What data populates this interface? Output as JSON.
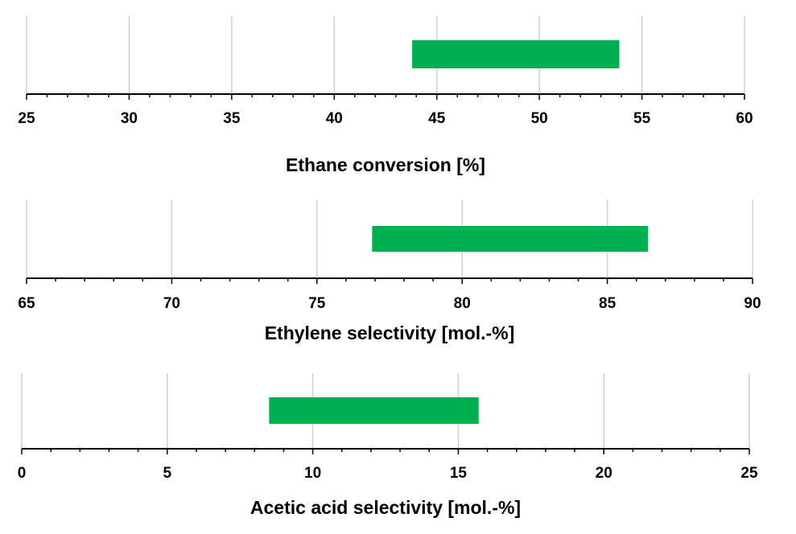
{
  "colors": {
    "bar": "#00b050",
    "grid": "#d0d0d0",
    "axis": "#000000"
  },
  "chart_data": [
    {
      "type": "bar",
      "orientation": "horizontal-range",
      "xlabel": "Ethane conversion [%]",
      "xlim": [
        25,
        60
      ],
      "major_tick": 5,
      "minor_tick": 1,
      "tick_labels": [
        "25",
        "30",
        "35",
        "40",
        "45",
        "50",
        "55",
        "60"
      ],
      "grid": true,
      "range": [
        43.8,
        53.9
      ]
    },
    {
      "type": "bar",
      "orientation": "horizontal-range",
      "xlabel": "Ethylene selectivity [mol.-%]",
      "xlim": [
        65,
        90
      ],
      "major_tick": 5,
      "minor_tick": 1,
      "tick_labels": [
        "65",
        "70",
        "75",
        "80",
        "85",
        "90"
      ],
      "grid": true,
      "range": [
        76.9,
        86.4
      ]
    },
    {
      "type": "bar",
      "orientation": "horizontal-range",
      "xlabel": "Acetic acid selectivity [mol.-%]",
      "xlim": [
        0,
        25
      ],
      "major_tick": 5,
      "minor_tick": 1,
      "tick_labels": [
        "0",
        "5",
        "10",
        "15",
        "20",
        "25"
      ],
      "grid": true,
      "range": [
        8.5,
        15.7
      ]
    }
  ]
}
